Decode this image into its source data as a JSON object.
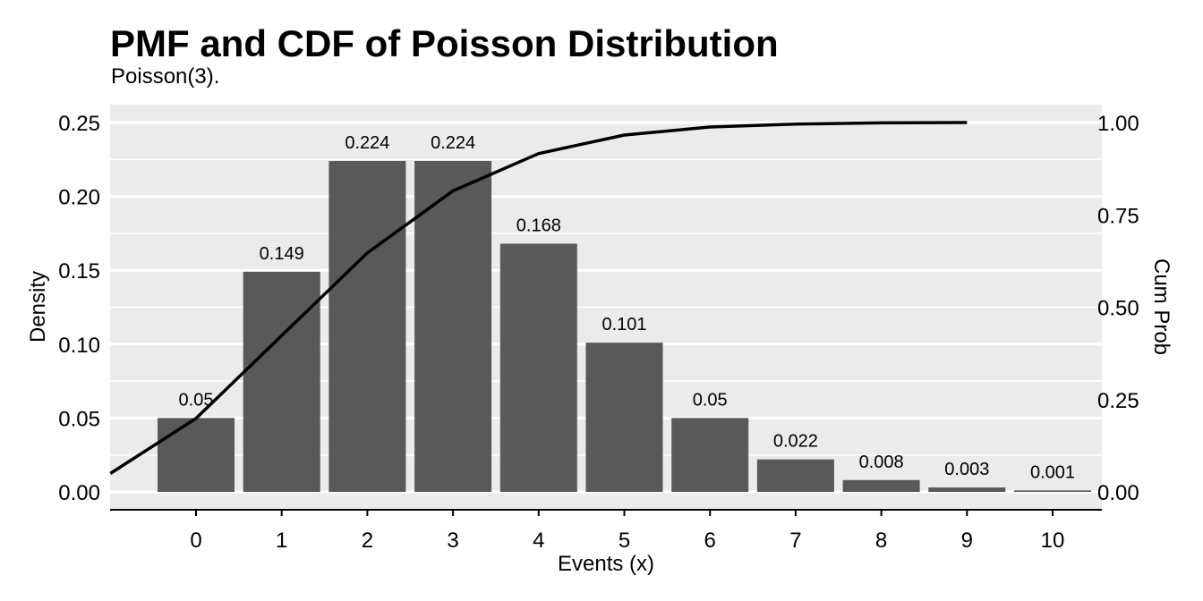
{
  "chart_data": {
    "type": "bar",
    "title": "PMF and CDF of Poisson Distribution",
    "subtitle": "Poisson(3).",
    "xlabel": "Events (x)",
    "ylabel": "Density",
    "y2label": "Cum Prob",
    "x": [
      0,
      1,
      2,
      3,
      4,
      5,
      6,
      7,
      8,
      9,
      10
    ],
    "xticks": [
      "0",
      "1",
      "2",
      "3",
      "4",
      "5",
      "6",
      "7",
      "8",
      "9",
      "10"
    ],
    "values": [
      0.05,
      0.149,
      0.224,
      0.224,
      0.168,
      0.101,
      0.05,
      0.022,
      0.008,
      0.003,
      0.001
    ],
    "value_labels": [
      "0.05",
      "0.149",
      "0.224",
      "0.224",
      "0.168",
      "0.101",
      "0.05",
      "0.022",
      "0.008",
      "0.003",
      "0.001"
    ],
    "ylim": [
      -0.0115,
      0.262
    ],
    "yticks": [
      0.0,
      0.05,
      0.1,
      0.15,
      0.2,
      0.25
    ],
    "ytick_labels": [
      "0.00",
      "0.05",
      "0.10",
      "0.15",
      "0.20",
      "0.25"
    ],
    "y2ticks": [
      0,
      0.25,
      0.5,
      0.75,
      1.0
    ],
    "y2tick_labels": [
      "0.00",
      "0.25",
      "0.50",
      "0.75",
      "1.00"
    ],
    "cdf_line": {
      "x": [
        -1,
        0,
        1,
        2,
        3,
        4,
        5,
        6,
        7,
        8,
        9
      ],
      "y": [
        0.05,
        0.199,
        0.423,
        0.647,
        0.815,
        0.916,
        0.966,
        0.988,
        0.996,
        0.999,
        1.0
      ]
    },
    "grid": true,
    "legend": "none",
    "colors": {
      "bar": "#595959",
      "panel": "#ebebeb",
      "grid": "#ffffff",
      "line": "#000000"
    }
  }
}
